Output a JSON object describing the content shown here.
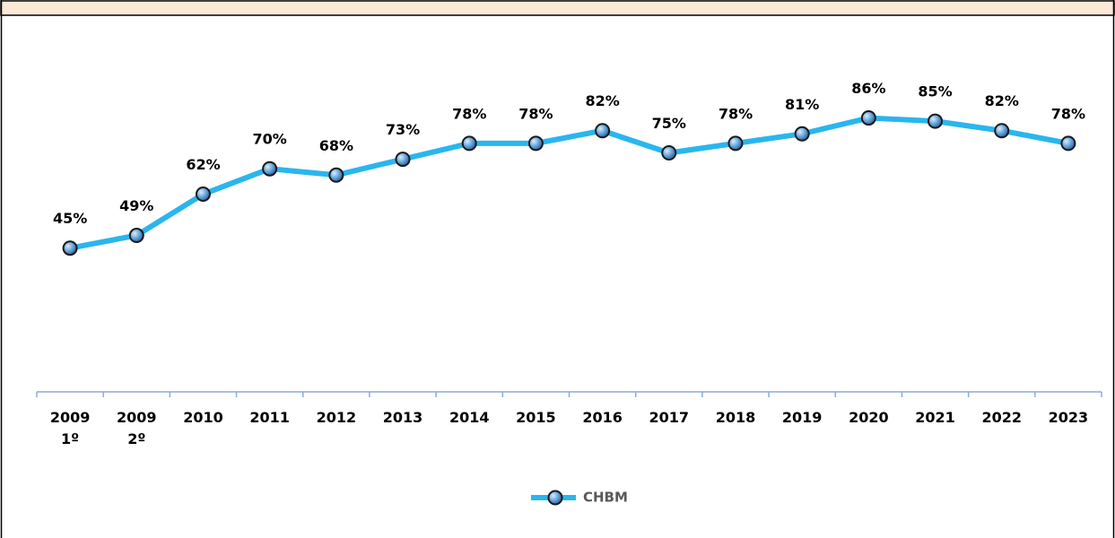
{
  "chart_data": {
    "type": "line",
    "categories": [
      [
        "2009",
        "1º"
      ],
      [
        "2009",
        "2º"
      ],
      [
        "2010"
      ],
      [
        "2011"
      ],
      [
        "2012"
      ],
      [
        "2013"
      ],
      [
        "2014"
      ],
      [
        "2015"
      ],
      [
        "2016"
      ],
      [
        "2017"
      ],
      [
        "2018"
      ],
      [
        "2019"
      ],
      [
        "2020"
      ],
      [
        "2021"
      ],
      [
        "2022"
      ],
      [
        "2023"
      ]
    ],
    "series": [
      {
        "name": "CHBM",
        "color": "#29b6ee",
        "values": [
          45,
          49,
          62,
          70,
          68,
          73,
          78,
          78,
          82,
          75,
          78,
          81,
          86,
          85,
          82,
          78
        ],
        "value_labels": [
          "45%",
          "49%",
          "62%",
          "70%",
          "68%",
          "73%",
          "78%",
          "78%",
          "82%",
          "75%",
          "78%",
          "81%",
          "86%",
          "85%",
          "82%",
          "78%"
        ]
      }
    ],
    "ylim": [
      0,
      100
    ],
    "legend": "bottom"
  }
}
